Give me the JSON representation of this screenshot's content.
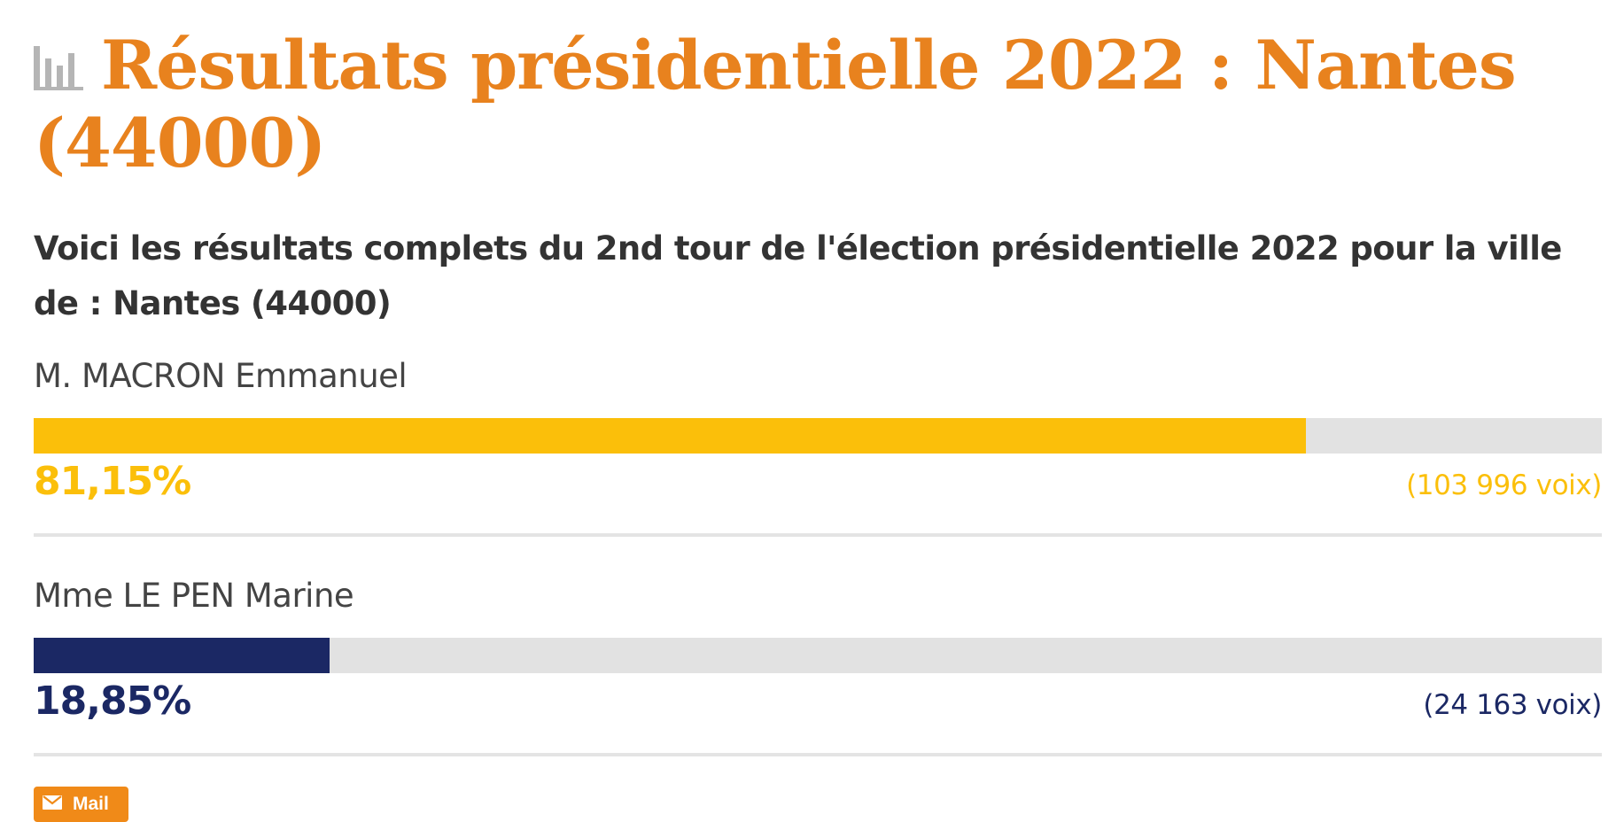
{
  "page": {
    "title": "Résultats présidentielle 2022 : Nantes (44000)",
    "subtitle": "Voici les résultats complets du 2nd tour de l'élection présidentielle 2022 pour la ville de : Nantes (44000)",
    "title_icon": "bar-chart-icon",
    "mail_label": "Mail",
    "mail_icon": "envelope-icon"
  },
  "colors": {
    "title": "#e8821e",
    "track": "#e2e2e2",
    "mail_button": "#f08a18"
  },
  "chart_data": {
    "type": "bar",
    "orientation": "horizontal",
    "categories": [
      "M. MACRON Emmanuel",
      "Mme LE PEN Marine"
    ],
    "values": [
      81.15,
      18.85
    ],
    "value_labels": [
      "81,15%",
      "18,85%"
    ],
    "votes": [
      "(103 996 voix)",
      "(24 163 voix)"
    ],
    "colors": [
      "#fbbf0a",
      "#1b2864"
    ],
    "xlim": [
      0,
      100
    ],
    "grid": false,
    "legend": false
  }
}
